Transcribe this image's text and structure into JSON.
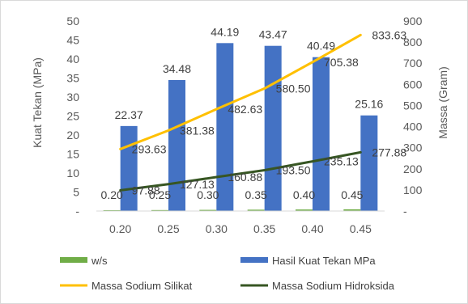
{
  "chart_data": {
    "type": "bar",
    "categories": [
      "0.20",
      "0.25",
      "0.30",
      "0.35",
      "0.40",
      "0.45"
    ],
    "ylabel_left": "Kuat Tekan (MPa)",
    "ylabel_right": "Massa (Gram)",
    "ylim_left": [
      0,
      50
    ],
    "ylim_right": [
      0,
      900
    ],
    "yticks_left": [
      "-",
      "5",
      "10",
      "15",
      "20",
      "25",
      "30",
      "35",
      "40",
      "45",
      "50"
    ],
    "yticks_right": [
      "-",
      "100",
      "200",
      "300",
      "400",
      "500",
      "600",
      "700",
      "800",
      "900"
    ],
    "grid": false,
    "legend_position": "bottom",
    "series": [
      {
        "name": "w/s",
        "kind": "bar",
        "axis": "left",
        "color": "#70ad47",
        "values": [
          0.2,
          0.25,
          0.3,
          0.35,
          0.4,
          0.45
        ],
        "labels": [
          "0.20",
          "0.25",
          "0.30",
          "0.35",
          "0.40",
          "0.45"
        ]
      },
      {
        "name": "Hasil Kuat Tekan MPa",
        "kind": "bar",
        "axis": "left",
        "color": "#4472c4",
        "values": [
          22.37,
          34.48,
          44.19,
          43.47,
          40.49,
          25.16
        ],
        "labels": [
          "22.37",
          "34.48",
          "44.19",
          "43.47",
          "40.49",
          "25.16"
        ]
      },
      {
        "name": "Massa Sodium Silikat",
        "kind": "line",
        "axis": "right",
        "color": "#ffc000",
        "values": [
          293.63,
          381.38,
          482.63,
          580.5,
          705.38,
          833.63
        ],
        "labels": [
          "293.63",
          "381.38",
          "482.63",
          "580.50",
          "705.38",
          "833.63"
        ]
      },
      {
        "name": "Massa Sodium Hidroksida",
        "kind": "line",
        "axis": "right",
        "color": "#375623",
        "values": [
          97.88,
          127.13,
          160.88,
          193.5,
          235.13,
          277.88
        ],
        "labels": [
          "97.88",
          "127.13",
          "160.88",
          "193.50",
          "235.13",
          "277.88"
        ]
      }
    ]
  }
}
